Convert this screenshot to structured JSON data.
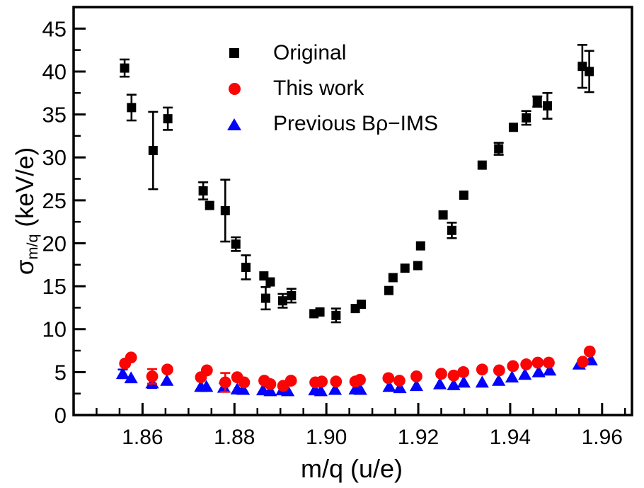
{
  "figure": {
    "background": "#ffffff"
  },
  "axes": {
    "x_title": "m/q (u/e)",
    "y_title_sigma": "σ",
    "y_title_sub": "m/q",
    "y_title_unit": " (keV/e)"
  },
  "chart_data": {
    "type": "scatter",
    "title": "",
    "xlabel": "m/q (u/e)",
    "ylabel": "sigma_m/q (keV/e)",
    "xlim": [
      1.845,
      1.9665
    ],
    "ylim": [
      0,
      47.5
    ],
    "x_major_ticks": [
      1.86,
      1.88,
      1.9,
      1.92,
      1.94,
      1.96
    ],
    "x_tick_labels": [
      "1.86",
      "1.88",
      "1.90",
      "1.92",
      "1.94",
      "1.96"
    ],
    "x_minor_step": 0.005,
    "y_major_ticks": [
      0,
      5,
      10,
      15,
      20,
      25,
      30,
      35,
      40,
      45
    ],
    "y_tick_labels": [
      "0",
      "5",
      "10",
      "15",
      "20",
      "25",
      "30",
      "35",
      "40",
      "45"
    ],
    "y_minor_step": 2.5,
    "grid": false,
    "legend_position": "inside-top-center",
    "series": [
      {
        "name": "Original",
        "marker": "square",
        "color": "#000000",
        "z": 1,
        "points": [
          [
            1.8561,
            40.4,
            1.0
          ],
          [
            1.8576,
            35.8,
            1.5
          ],
          [
            1.8623,
            30.8,
            4.5
          ],
          [
            1.8655,
            34.5,
            1.3
          ],
          [
            1.8732,
            26.1,
            1.0
          ],
          [
            1.8746,
            24.4,
            0
          ],
          [
            1.878,
            23.8,
            3.6
          ],
          [
            1.8803,
            19.9,
            0.8
          ],
          [
            1.8825,
            17.2,
            1.4
          ],
          [
            1.8864,
            16.2,
            0
          ],
          [
            1.8868,
            13.6,
            1.3
          ],
          [
            1.8878,
            15.5,
            0
          ],
          [
            1.8905,
            13.3,
            0.8
          ],
          [
            1.8924,
            13.9,
            0.8
          ],
          [
            1.8973,
            11.8,
            0
          ],
          [
            1.8986,
            12.0,
            0
          ],
          [
            1.9021,
            11.6,
            0.8
          ],
          [
            1.9063,
            12.4,
            0
          ],
          [
            1.9076,
            12.9,
            0
          ],
          [
            1.9136,
            14.5,
            0
          ],
          [
            1.9145,
            16.0,
            0
          ],
          [
            1.9171,
            17.1,
            0
          ],
          [
            1.9199,
            17.4,
            0
          ],
          [
            1.9205,
            19.7,
            0
          ],
          [
            1.9254,
            23.3,
            0
          ],
          [
            1.9273,
            21.5,
            0.9
          ],
          [
            1.9299,
            25.6,
            0
          ],
          [
            1.9339,
            29.1,
            0
          ],
          [
            1.9375,
            31.0,
            0.7
          ],
          [
            1.9407,
            33.5,
            0
          ],
          [
            1.9435,
            34.6,
            0.8
          ],
          [
            1.9459,
            36.5,
            0.6
          ],
          [
            1.9481,
            36.0,
            1.5
          ],
          [
            1.9557,
            40.6,
            2.5
          ],
          [
            1.9572,
            40.0,
            2.4
          ]
        ]
      },
      {
        "name": "This work",
        "marker": "circle",
        "color": "#fa0404",
        "z": 3,
        "points": [
          [
            1.8562,
            6.0,
            0
          ],
          [
            1.8575,
            6.7,
            0
          ],
          [
            1.8621,
            4.5,
            0.85
          ],
          [
            1.8654,
            5.3,
            0
          ],
          [
            1.8727,
            4.4,
            0
          ],
          [
            1.874,
            5.2,
            0
          ],
          [
            1.878,
            3.8,
            1.1
          ],
          [
            1.8806,
            4.4,
            0
          ],
          [
            1.8821,
            3.8,
            0
          ],
          [
            1.8865,
            4.0,
            0
          ],
          [
            1.8878,
            3.6,
            0
          ],
          [
            1.8906,
            3.4,
            0
          ],
          [
            1.8923,
            4.0,
            0
          ],
          [
            1.8976,
            3.8,
            0
          ],
          [
            1.899,
            3.9,
            0
          ],
          [
            1.9021,
            3.9,
            0
          ],
          [
            1.9063,
            3.9,
            0
          ],
          [
            1.9073,
            4.1,
            0
          ],
          [
            1.9135,
            4.3,
            0
          ],
          [
            1.9159,
            4.0,
            0
          ],
          [
            1.9196,
            4.5,
            0
          ],
          [
            1.925,
            4.8,
            0
          ],
          [
            1.9277,
            4.6,
            0
          ],
          [
            1.9298,
            5.0,
            0
          ],
          [
            1.9339,
            5.3,
            0
          ],
          [
            1.9376,
            5.2,
            0
          ],
          [
            1.9406,
            5.7,
            0
          ],
          [
            1.9435,
            5.9,
            0
          ],
          [
            1.946,
            6.1,
            0
          ],
          [
            1.9484,
            6.1,
            0
          ],
          [
            1.9558,
            6.2,
            0
          ],
          [
            1.9573,
            7.4,
            0
          ]
        ]
      },
      {
        "name": "Previous Bρ−IMS",
        "marker": "triangle",
        "color": "#0404fa",
        "z": 2,
        "points": [
          [
            1.8557,
            4.8,
            0.5
          ],
          [
            1.8575,
            4.3,
            0
          ],
          [
            1.8621,
            3.7,
            0.55
          ],
          [
            1.8653,
            4.0,
            0
          ],
          [
            1.8727,
            3.3,
            0
          ],
          [
            1.8739,
            3.3,
            0
          ],
          [
            1.8777,
            3.2,
            0.5
          ],
          [
            1.8806,
            3.0,
            0
          ],
          [
            1.8819,
            2.95,
            0
          ],
          [
            1.8862,
            2.9,
            0
          ],
          [
            1.8878,
            2.8,
            0
          ],
          [
            1.8904,
            2.9,
            0
          ],
          [
            1.8916,
            2.8,
            0
          ],
          [
            1.8975,
            2.9,
            0
          ],
          [
            1.8988,
            2.8,
            0
          ],
          [
            1.9019,
            2.95,
            0
          ],
          [
            1.9063,
            3.0,
            0
          ],
          [
            1.9074,
            2.95,
            0
          ],
          [
            1.9137,
            3.3,
            0
          ],
          [
            1.916,
            3.15,
            0
          ],
          [
            1.9196,
            3.4,
            0
          ],
          [
            1.9247,
            3.6,
            0
          ],
          [
            1.9277,
            3.5,
            0
          ],
          [
            1.9299,
            3.8,
            0
          ],
          [
            1.9339,
            3.8,
            0
          ],
          [
            1.9375,
            4.0,
            0
          ],
          [
            1.9404,
            4.4,
            0
          ],
          [
            1.9432,
            4.7,
            0
          ],
          [
            1.9462,
            5.0,
            0
          ],
          [
            1.9486,
            5.2,
            0
          ],
          [
            1.955,
            5.9,
            0
          ],
          [
            1.9576,
            6.4,
            0
          ]
        ]
      }
    ]
  }
}
